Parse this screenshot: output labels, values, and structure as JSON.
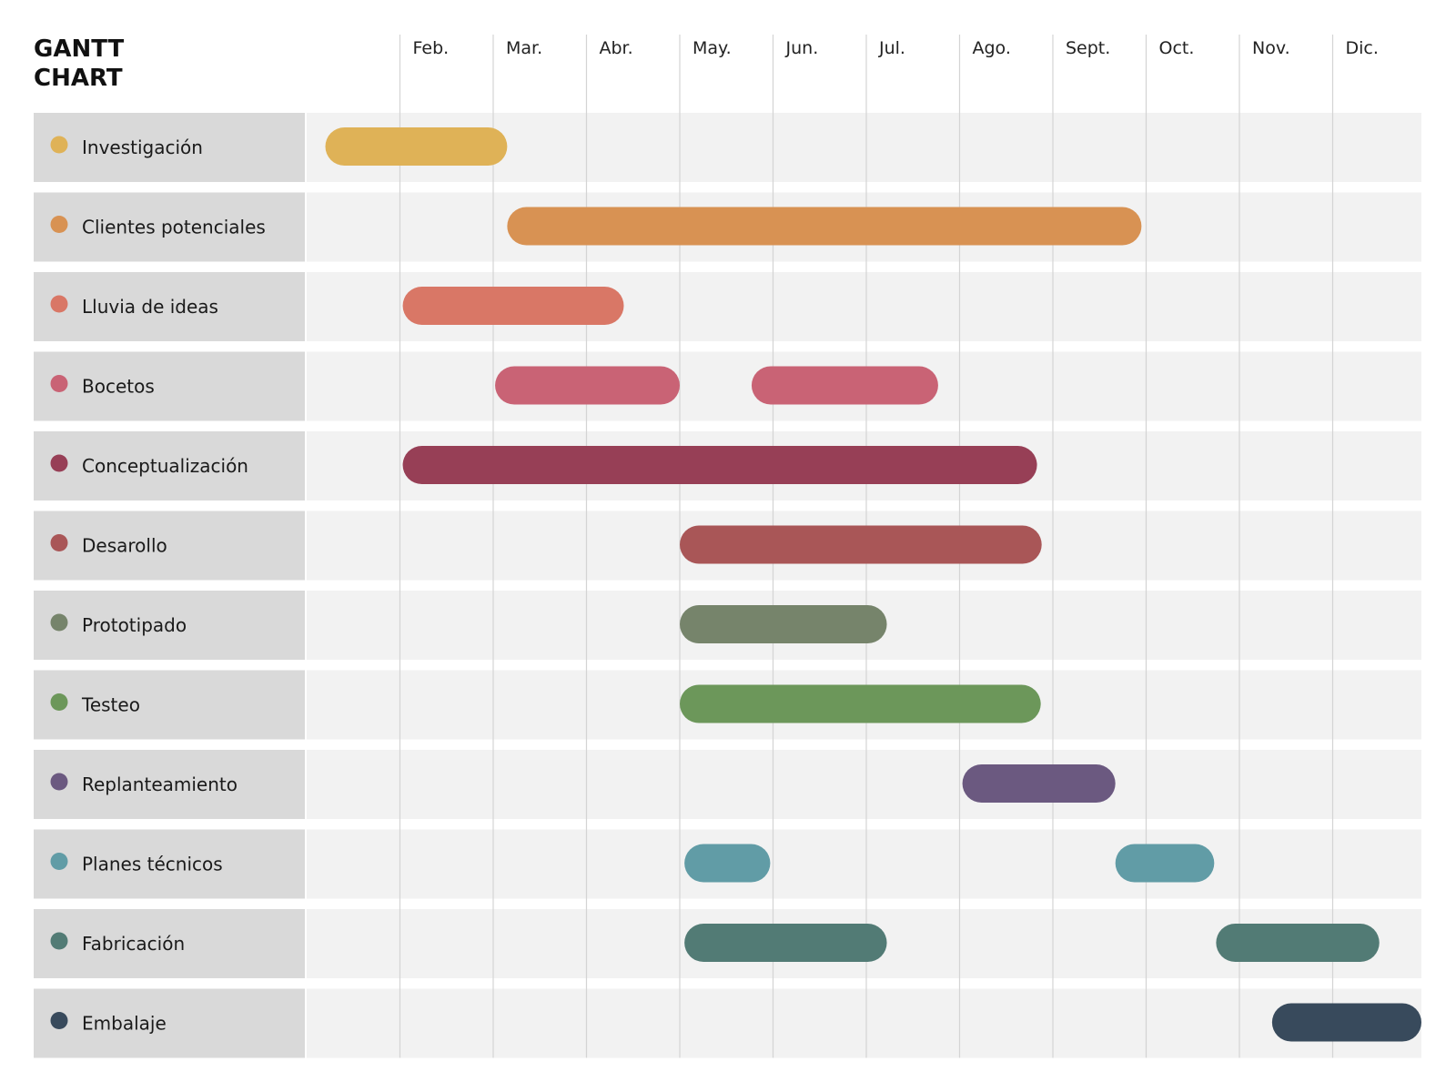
{
  "title": {
    "line1": "GANTT",
    "line2": "CHART"
  },
  "chart_data": {
    "type": "gantt",
    "title": "GANTT CHART",
    "months": [
      "Feb.",
      "Mar.",
      "Abr.",
      "May.",
      "Jun.",
      "Jul.",
      "Ago.",
      "Sept.",
      "Oct.",
      "Nov.",
      "Dic."
    ],
    "month_range": [
      1,
      12
    ],
    "grid": true,
    "tasks": [
      {
        "name": "Investigación",
        "color": "#DFB257",
        "segments": [
          [
            1.2,
            3.15
          ]
        ]
      },
      {
        "name": "Clientes potenciales",
        "color": "#D89253",
        "segments": [
          [
            3.15,
            9.95
          ]
        ]
      },
      {
        "name": "Lluvia de ideas",
        "color": "#D97766",
        "segments": [
          [
            2.03,
            4.4
          ]
        ]
      },
      {
        "name": "Bocetos",
        "color": "#C96375",
        "segments": [
          [
            3.02,
            5.0
          ],
          [
            5.77,
            7.77
          ]
        ]
      },
      {
        "name": "Conceptualización",
        "color": "#973F56",
        "segments": [
          [
            2.03,
            8.83
          ]
        ]
      },
      {
        "name": "Desarollo",
        "color": "#A95657",
        "segments": [
          [
            5.0,
            8.88
          ]
        ]
      },
      {
        "name": "Prototipado",
        "color": "#76846B",
        "segments": [
          [
            5.0,
            7.22
          ]
        ]
      },
      {
        "name": "Testeo",
        "color": "#6C975A",
        "segments": [
          [
            5.0,
            8.87
          ]
        ]
      },
      {
        "name": "Replanteamiento",
        "color": "#6B5980",
        "segments": [
          [
            8.03,
            9.67
          ]
        ]
      },
      {
        "name": "Planes técnicos",
        "color": "#619CA6",
        "segments": [
          [
            5.05,
            5.97
          ],
          [
            9.67,
            10.73
          ]
        ]
      },
      {
        "name": "Fabricación",
        "color": "#527B75",
        "segments": [
          [
            5.05,
            7.22
          ],
          [
            10.75,
            12.5
          ]
        ]
      },
      {
        "name": "Embalaje",
        "color": "#384A5C",
        "segments": [
          [
            11.35,
            13.0
          ]
        ]
      }
    ]
  }
}
